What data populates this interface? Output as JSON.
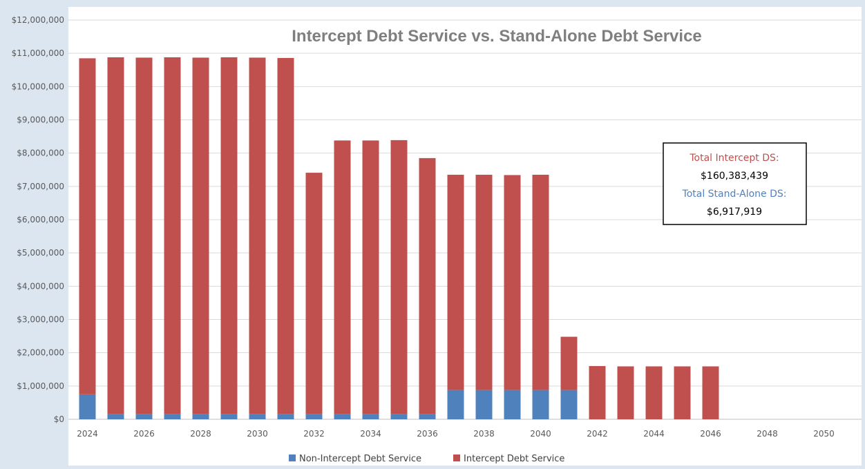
{
  "chart_data": {
    "type": "bar",
    "stacked": true,
    "title": "Intercept Debt Service vs. Stand-Alone Debt Service",
    "xlabel": "",
    "ylabel": "",
    "categories": [
      2024,
      2025,
      2026,
      2027,
      2028,
      2029,
      2030,
      2031,
      2032,
      2033,
      2034,
      2035,
      2036,
      2037,
      2038,
      2039,
      2040,
      2041,
      2042,
      2043,
      2044,
      2045,
      2046,
      2047,
      2048,
      2049,
      2050
    ],
    "x_tick_labels": [
      "2024",
      "2026",
      "2028",
      "2030",
      "2032",
      "2034",
      "2036",
      "2038",
      "2040",
      "2042",
      "2044",
      "2046",
      "2048",
      "2050"
    ],
    "y_tick_labels": [
      "$0",
      "$1,000,000",
      "$2,000,000",
      "$3,000,000",
      "$4,000,000",
      "$5,000,000",
      "$6,000,000",
      "$7,000,000",
      "$8,000,000",
      "$9,000,000",
      "$10,000,000",
      "$11,000,000",
      "$12,000,000"
    ],
    "ylim": [
      0,
      12000000
    ],
    "grid": true,
    "legend_position": "bottom",
    "series": [
      {
        "name": "Non-Intercept Debt Service",
        "color": "#4f81bd",
        "values": [
          750000,
          150000,
          150000,
          150000,
          150000,
          150000,
          150000,
          150000,
          150000,
          150000,
          150000,
          150000,
          150000,
          880000,
          880000,
          880000,
          880000,
          880000,
          0,
          0,
          0,
          0,
          0,
          0,
          0,
          0,
          0
        ]
      },
      {
        "name": "Intercept Debt Service",
        "color": "#c0504d",
        "values": [
          10100000,
          10730000,
          10720000,
          10730000,
          10720000,
          10730000,
          10720000,
          10710000,
          7260000,
          8230000,
          8230000,
          8240000,
          7700000,
          6470000,
          6470000,
          6460000,
          6470000,
          1600000,
          1600000,
          1590000,
          1590000,
          1590000,
          1590000,
          0,
          0,
          0,
          0
        ]
      }
    ],
    "annotation": {
      "label1": "Total Intercept DS:",
      "value1": "$160,383,439",
      "label2": "Total Stand-Alone DS:",
      "value2": "$6,917,919",
      "label1_color": "#c0504d",
      "label2_color": "#4f81bd"
    }
  }
}
